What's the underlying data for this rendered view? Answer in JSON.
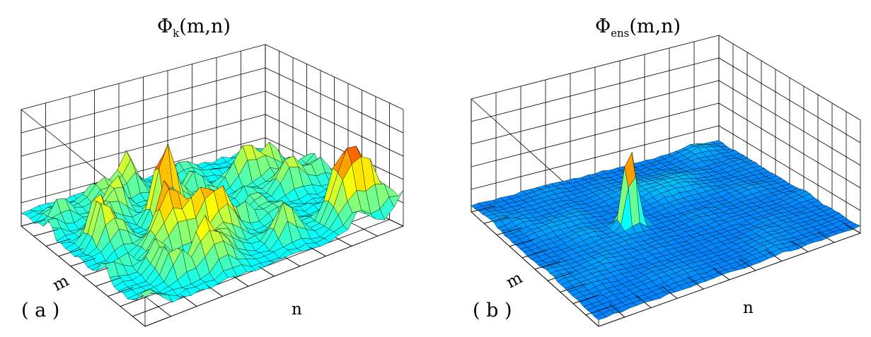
{
  "panels": [
    {
      "title_main": "Φ",
      "title_sub": "k",
      "title_tail": "(m,n)",
      "xlabel": "m",
      "ylabel": "n",
      "panel_label": "( a )"
    },
    {
      "title_main": "Φ",
      "title_sub": "ens",
      "title_tail": "(m,n)",
      "xlabel": "m",
      "ylabel": "n",
      "panel_label": "( b )"
    }
  ],
  "chart_data": [
    {
      "type": "surface",
      "title": "Φk(m,n)",
      "xlabel": "m",
      "ylabel": "n",
      "panel_label": "(a)",
      "description_of_values": "noisy correlation surface with many random peaks and one dominant central peak",
      "peak": {
        "relative_height": 1.0
      },
      "background_level_relative": 0.45,
      "grid": true,
      "colormap": "jet"
    },
    {
      "type": "surface",
      "title": "Φens(m,n)",
      "xlabel": "m",
      "ylabel": "n",
      "panel_label": "(b)",
      "description_of_values": "smooth ensemble-averaged surface with a single sharp central peak",
      "peak": {
        "relative_height": 1.0
      },
      "background_level_relative": 0.1,
      "grid": true,
      "colormap": "jet"
    }
  ]
}
